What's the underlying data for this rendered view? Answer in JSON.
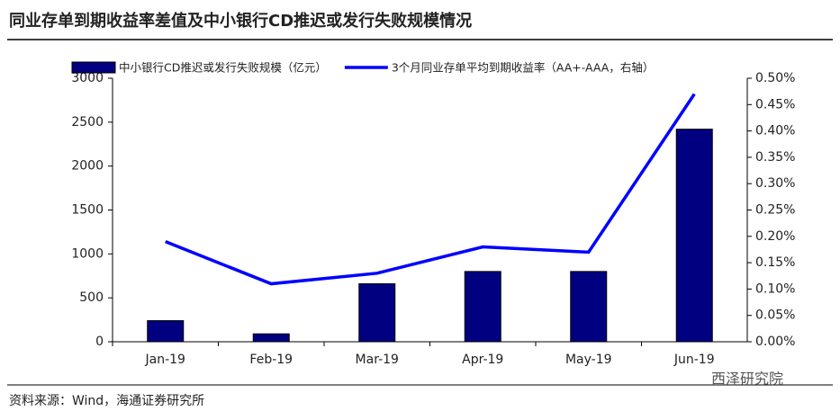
{
  "chart_data": {
    "type": "combo",
    "title": "同业存单到期收益率差值及中小银行CD推迟或发行失败规模情况",
    "source": "资料来源：Wind，海通证券研究所",
    "watermark": "西泽研究院",
    "categories": [
      "Jan-19",
      "Feb-19",
      "Mar-19",
      "Apr-19",
      "May-19",
      "Jun-19"
    ],
    "series": [
      {
        "name": "中小银行CD推迟或发行失败规模（亿元）",
        "type": "bar",
        "color": "#000080",
        "values": [
          240,
          90,
          660,
          800,
          800,
          2420
        ]
      },
      {
        "name": "3个月同业存单平均到期收益率（AA+-AAA，右轴）",
        "type": "line",
        "axis": "y2",
        "color": "#0000ff",
        "values": [
          0.19,
          0.11,
          0.13,
          0.18,
          0.17,
          0.47
        ]
      }
    ],
    "ylim": [
      0,
      3000
    ],
    "yticks": [
      0,
      500,
      1000,
      1500,
      2000,
      2500,
      3000
    ],
    "y2lim": [
      0,
      0.5
    ],
    "y2ticks": [
      {
        "value": 0,
        "label": "0.00%"
      },
      {
        "value": 0.05,
        "label": "0.05%"
      },
      {
        "value": 0.1,
        "label": "0.10%"
      },
      {
        "value": 0.15,
        "label": "0.15%"
      },
      {
        "value": 0.2,
        "label": "0.20%"
      },
      {
        "value": 0.25,
        "label": "0.25%"
      },
      {
        "value": 0.3,
        "label": "0.30%"
      },
      {
        "value": 0.35,
        "label": "0.35%"
      },
      {
        "value": 0.4,
        "label": "0.40%"
      },
      {
        "value": 0.45,
        "label": "0.45%"
      },
      {
        "value": 0.5,
        "label": "0.50%"
      }
    ],
    "grid": false
  }
}
